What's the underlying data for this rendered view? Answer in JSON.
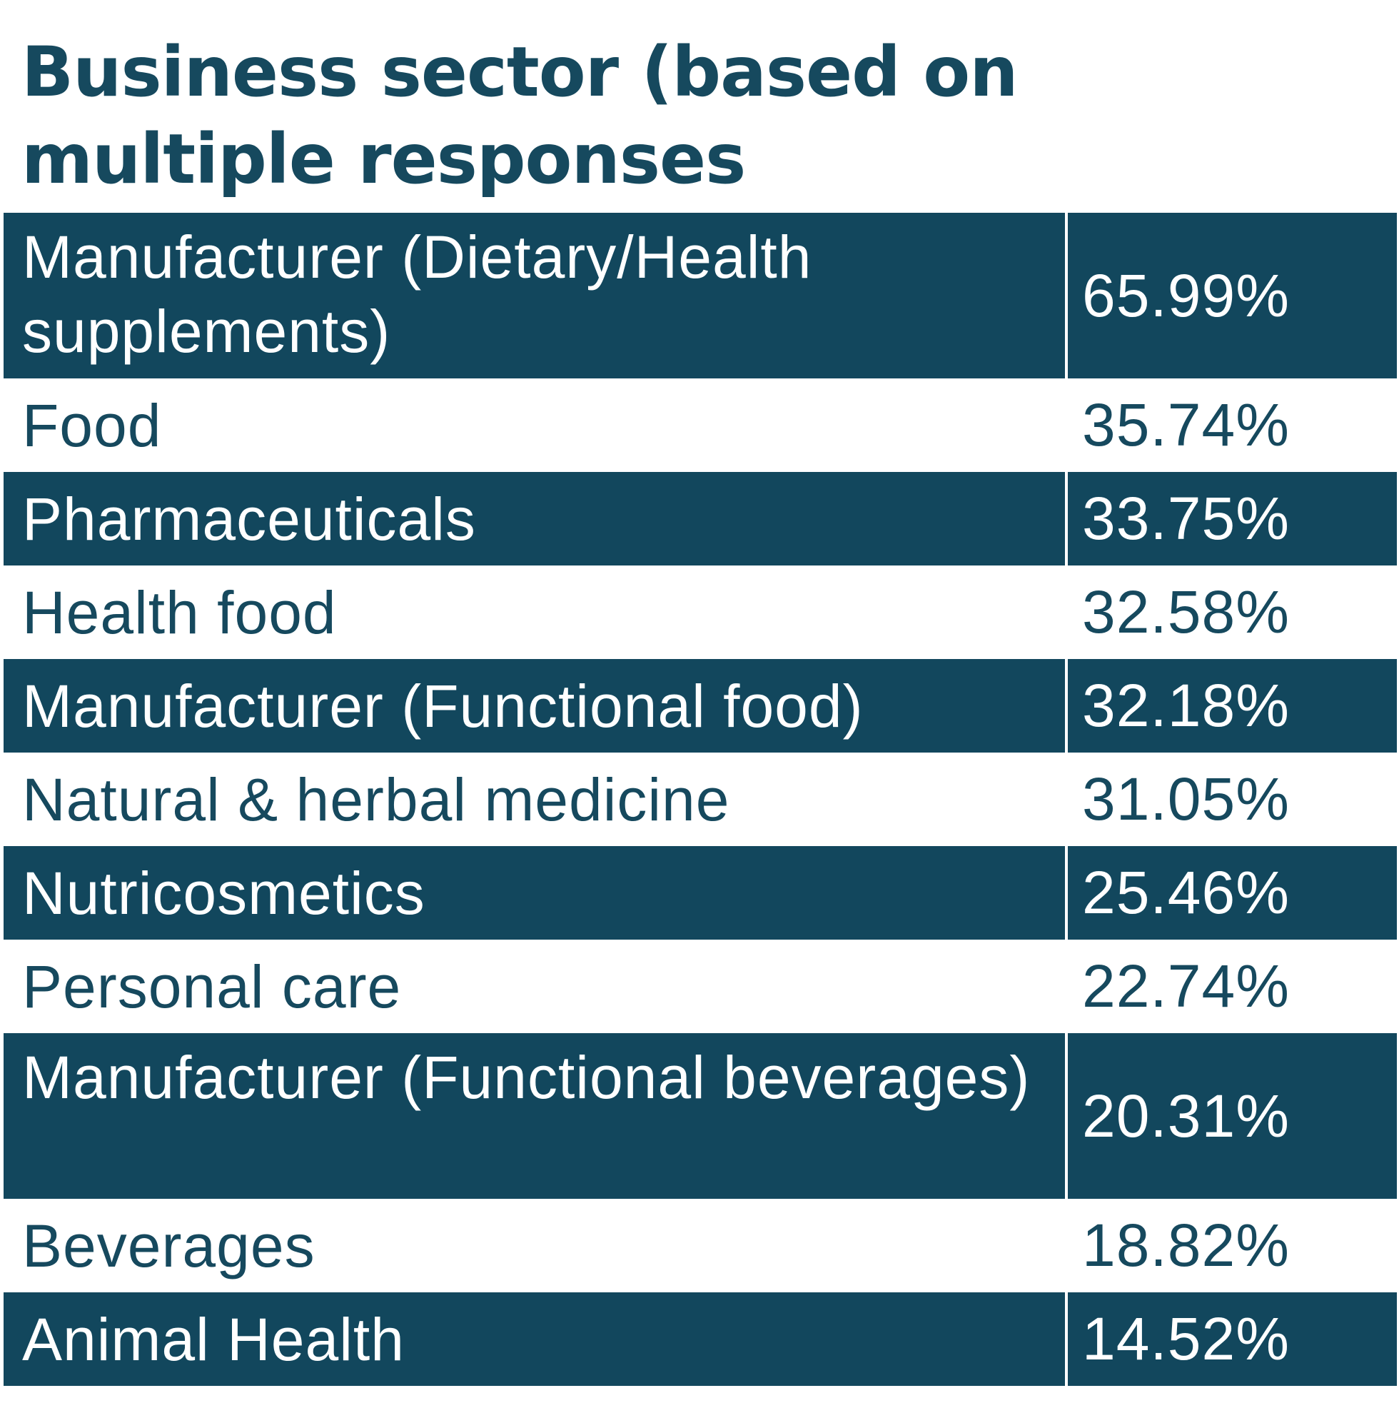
{
  "title": "Business sector (based on multiple responses",
  "colors": {
    "dark_row": "#12475d",
    "light_row": "#ffffff",
    "title": "#16495e"
  },
  "chart_data": {
    "type": "table",
    "title": "Business sector (based on multiple responses",
    "rows": [
      {
        "label": "Manufacturer (Dietary/Health supplements)",
        "value": "65.99%"
      },
      {
        "label": "Food",
        "value": "35.74%"
      },
      {
        "label": "Pharmaceuticals",
        "value": "33.75%"
      },
      {
        "label": "Health food",
        "value": "32.58%"
      },
      {
        "label": "Manufacturer (Functional food)",
        "value": "32.18%"
      },
      {
        "label": "Natural & herbal medicine",
        "value": "31.05%"
      },
      {
        "label": "Nutricosmetics",
        "value": "25.46%"
      },
      {
        "label": "Personal care",
        "value": "22.74%"
      },
      {
        "label": "Manufacturer (Functional beverages)",
        "value": "20.31%"
      },
      {
        "label": "Beverages",
        "value": "18.82%"
      },
      {
        "label": "Animal Health",
        "value": "14.52%"
      }
    ]
  }
}
